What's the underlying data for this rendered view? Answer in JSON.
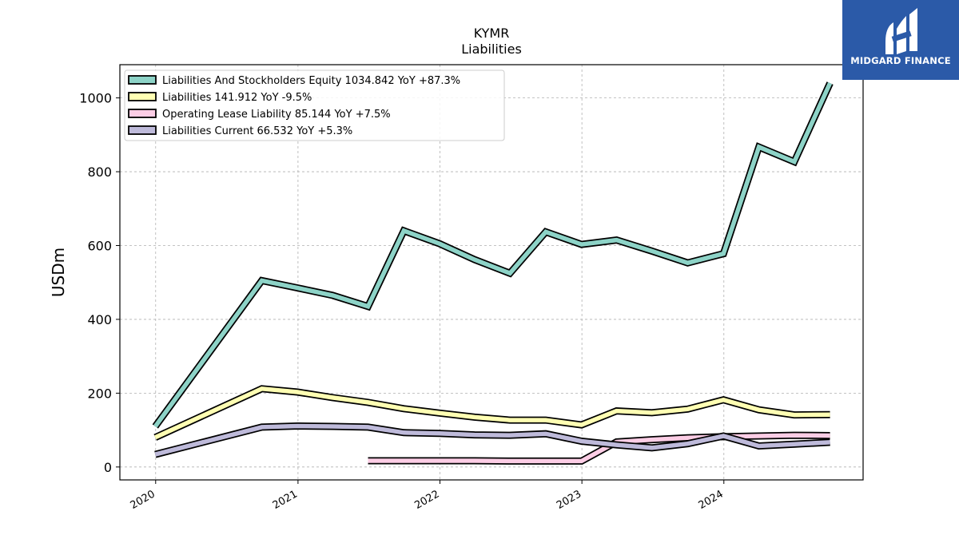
{
  "chart_data": {
    "type": "line",
    "title": "KYMR",
    "subtitle": "Liabilities",
    "xlabel": "",
    "ylabel": "USDm",
    "xlim": [
      "2019-10-01",
      "2024-12-24"
    ],
    "ylim": [
      -35,
      1090
    ],
    "yticks": [
      0,
      200,
      400,
      600,
      800,
      1000
    ],
    "xticks": [
      "2020",
      "2021",
      "2022",
      "2023",
      "2024"
    ],
    "grid": true,
    "legend_position": "top-left",
    "series": [
      {
        "name": "Liabilities And Stockholders Equity",
        "legend_label": "Liabilities And Stockholders Equity  1034.842 YoY +87.3%",
        "color": "#8dd3c7",
        "points": [
          [
            "2019-12-31",
            110
          ],
          [
            "2020-09-30",
            505
          ],
          [
            "2020-12-31",
            485
          ],
          [
            "2021-03-31",
            465
          ],
          [
            "2021-06-30",
            435
          ],
          [
            "2021-09-30",
            640
          ],
          [
            "2021-12-31",
            605
          ],
          [
            "2022-03-31",
            562
          ],
          [
            "2022-06-30",
            525
          ],
          [
            "2022-09-30",
            637
          ],
          [
            "2022-12-31",
            603
          ],
          [
            "2023-03-31",
            615
          ],
          [
            "2023-06-30",
            585
          ],
          [
            "2023-09-30",
            553
          ],
          [
            "2023-12-31",
            578
          ],
          [
            "2024-03-31",
            867
          ],
          [
            "2024-06-30",
            827
          ],
          [
            "2024-09-30",
            1040
          ]
        ]
      },
      {
        "name": "Liabilities",
        "legend_label": "Liabilities  141.912 YoY -9.5%",
        "color": "#ffffb3",
        "points": [
          [
            "2019-12-31",
            80
          ],
          [
            "2020-09-30",
            212
          ],
          [
            "2020-12-31",
            203
          ],
          [
            "2021-03-31",
            188
          ],
          [
            "2021-06-30",
            175
          ],
          [
            "2021-09-30",
            158
          ],
          [
            "2021-12-31",
            146
          ],
          [
            "2022-03-31",
            135
          ],
          [
            "2022-06-30",
            127
          ],
          [
            "2022-09-30",
            127
          ],
          [
            "2022-12-31",
            114
          ],
          [
            "2023-03-31",
            152
          ],
          [
            "2023-06-30",
            147
          ],
          [
            "2023-09-30",
            157
          ],
          [
            "2023-12-31",
            182
          ],
          [
            "2024-03-31",
            155
          ],
          [
            "2024-06-30",
            141
          ],
          [
            "2024-09-30",
            142
          ]
        ]
      },
      {
        "name": "Operating Lease Liability",
        "legend_label": "Operating Lease Liability  85.144 YoY +7.5%",
        "color": "#fccde5",
        "points": [
          [
            "2021-06-30",
            17
          ],
          [
            "2021-09-30",
            17
          ],
          [
            "2021-12-31",
            17
          ],
          [
            "2022-03-31",
            17
          ],
          [
            "2022-06-30",
            16
          ],
          [
            "2022-09-30",
            16
          ],
          [
            "2022-12-31",
            16
          ],
          [
            "2023-03-31",
            68
          ],
          [
            "2023-06-30",
            74
          ],
          [
            "2023-09-30",
            79
          ],
          [
            "2023-12-31",
            82
          ],
          [
            "2024-03-31",
            84
          ],
          [
            "2024-06-30",
            86
          ],
          [
            "2024-09-30",
            85
          ]
        ]
      },
      {
        "name": "Liabilities Current",
        "legend_label": "Liabilities Current  66.532 YoY +5.3%",
        "color": "#bebada",
        "points": [
          [
            "2019-12-31",
            34
          ],
          [
            "2020-09-30",
            108
          ],
          [
            "2020-12-31",
            111
          ],
          [
            "2021-03-31",
            110
          ],
          [
            "2021-06-30",
            108
          ],
          [
            "2021-09-30",
            93
          ],
          [
            "2021-12-31",
            91
          ],
          [
            "2022-03-31",
            87
          ],
          [
            "2022-06-30",
            86
          ],
          [
            "2022-09-30",
            90
          ],
          [
            "2022-12-31",
            70
          ],
          [
            "2023-03-31",
            60
          ],
          [
            "2023-06-30",
            52
          ],
          [
            "2023-09-30",
            63
          ],
          [
            "2023-12-31",
            84
          ],
          [
            "2024-03-31",
            57
          ],
          [
            "2024-06-30",
            62
          ],
          [
            "2024-09-30",
            67
          ]
        ]
      }
    ]
  },
  "logo": {
    "text": "MIDGARD FINANCE",
    "background": "#2b5aa8"
  }
}
